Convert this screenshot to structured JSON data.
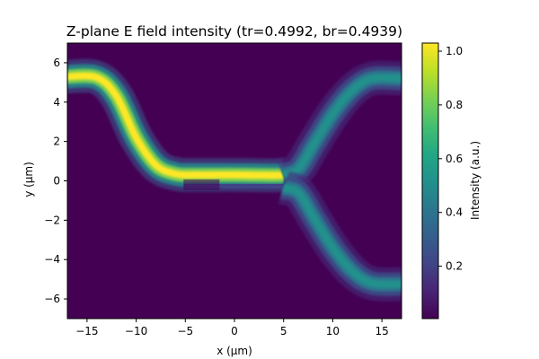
{
  "chart_data": {
    "type": "heatmap",
    "title": "Z-plane E field intensity (tr=0.4992, br=0.4939)",
    "xlabel": "x (μm)",
    "ylabel": "y (μm)",
    "xlim": [
      -17,
      17
    ],
    "ylim": [
      -7,
      7
    ],
    "x_ticks": [
      {
        "value": -15,
        "label": "−15"
      },
      {
        "value": -10,
        "label": "−10"
      },
      {
        "value": -5,
        "label": "−5"
      },
      {
        "value": 0,
        "label": "0"
      },
      {
        "value": 5,
        "label": "5"
      },
      {
        "value": 10,
        "label": "10"
      },
      {
        "value": 15,
        "label": "15"
      }
    ],
    "y_ticks": [
      {
        "value": -6,
        "label": "−6"
      },
      {
        "value": -4,
        "label": "−4"
      },
      {
        "value": -2,
        "label": "−2"
      },
      {
        "value": 0,
        "label": "0"
      },
      {
        "value": 2,
        "label": "2"
      },
      {
        "value": 4,
        "label": "4"
      },
      {
        "value": 6,
        "label": "6"
      }
    ],
    "colormap": "viridis",
    "colorbar": {
      "label": "Intensity (a.u.)",
      "range": [
        0.005,
        1.03
      ],
      "ticks": [
        {
          "value": 0.2,
          "label": "0.2"
        },
        {
          "value": 0.4,
          "label": "0.4"
        },
        {
          "value": 0.6,
          "label": "0.6"
        },
        {
          "value": 0.8,
          "label": "0.8"
        },
        {
          "value": 1.0,
          "label": "1.0"
        }
      ]
    },
    "field_paths": [
      {
        "points": [
          [
            -17,
            5.3
          ],
          [
            -14,
            5.25
          ],
          [
            -12,
            4.3
          ],
          [
            -10,
            2.2
          ],
          [
            -8,
            0.8
          ],
          [
            -6,
            0.35
          ],
          [
            -4,
            0.3
          ],
          [
            0,
            0.3
          ],
          [
            4,
            0.28
          ],
          [
            5,
            0.3
          ]
        ],
        "intensity": 1.0,
        "width": 0.3
      },
      {
        "points": [
          [
            5,
            0.3
          ],
          [
            6.5,
            0.6
          ],
          [
            8,
            1.8
          ],
          [
            10,
            3.4
          ],
          [
            12,
            4.6
          ],
          [
            14,
            5.2
          ],
          [
            17,
            5.2
          ]
        ],
        "intensity": 0.5,
        "width": 0.3
      },
      {
        "points": [
          [
            -5,
            -0.2
          ],
          [
            0,
            -0.25
          ],
          [
            4,
            -0.3
          ],
          [
            5,
            -0.35
          ]
        ],
        "intensity": 0.2,
        "width": 0.3,
        "fade_in": true
      },
      {
        "points": [
          [
            5,
            -0.35
          ],
          [
            6.5,
            -0.6
          ],
          [
            8,
            -1.8
          ],
          [
            10,
            -3.4
          ],
          [
            12,
            -4.6
          ],
          [
            14,
            -5.2
          ],
          [
            17,
            -5.25
          ]
        ],
        "intensity": 0.5,
        "width": 0.3
      }
    ]
  }
}
